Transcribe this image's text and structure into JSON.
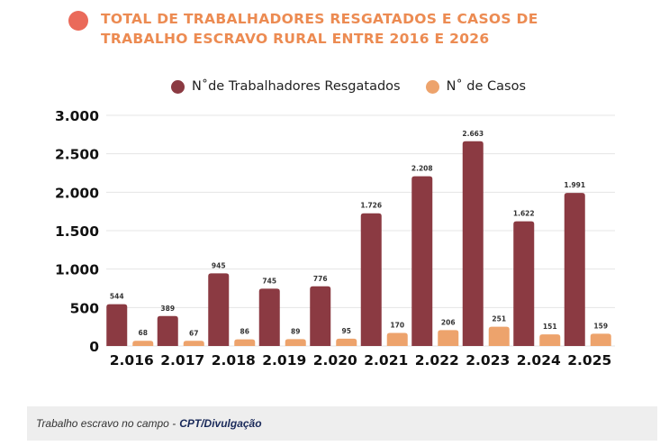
{
  "title_line1": "TOTAL DE TRABALHADORES RESGATADOS E CASOS DE",
  "title_line2": "TRABALHO ESCRAVO RURAL ENTRE 2016 E 2026",
  "legend": [
    {
      "label": "N˚de Trabalhadores Resgatados",
      "color": "#8b3a42"
    },
    {
      "label": "N˚ de Casos",
      "color": "#eda36c"
    }
  ],
  "caption": {
    "text": "Trabalho escravo no campo -",
    "credit": "CPT/Divulgação"
  },
  "chart_data": {
    "type": "bar",
    "title": "TOTAL DE TRABALHADORES RESGATADOS E CASOS DE TRABALHO ESCRAVO RURAL ENTRE 2016 E 2026",
    "categories": [
      "2.016",
      "2.017",
      "2.018",
      "2.019",
      "2.020",
      "2.021",
      "2.022",
      "2.023",
      "2.024",
      "2.025"
    ],
    "series": [
      {
        "name": "N˚de Trabalhadores Resgatados",
        "color": "#8b3a42",
        "values": [
          544,
          389,
          945,
          745,
          776,
          1726,
          2208,
          2663,
          1622,
          1991
        ],
        "labels": [
          "544",
          "389",
          "945",
          "745",
          "776",
          "1.726",
          "2.208",
          "2.663",
          "1.622",
          "1.991"
        ]
      },
      {
        "name": "N˚ de Casos",
        "color": "#eda36c",
        "values": [
          68,
          67,
          86,
          89,
          95,
          170,
          206,
          251,
          151,
          159
        ],
        "labels": [
          "68",
          "67",
          "86",
          "89",
          "95",
          "170",
          "206",
          "251",
          "151",
          "159"
        ]
      }
    ],
    "yticks": [
      0,
      500,
      1000,
      1500,
      2000,
      2500,
      3000
    ],
    "ytick_labels": [
      "0",
      "500",
      "1.000",
      "1.500",
      "2.000",
      "2.500",
      "3.000"
    ],
    "ylim": [
      0,
      3000
    ],
    "grid": true,
    "xlabel": "",
    "ylabel": ""
  }
}
